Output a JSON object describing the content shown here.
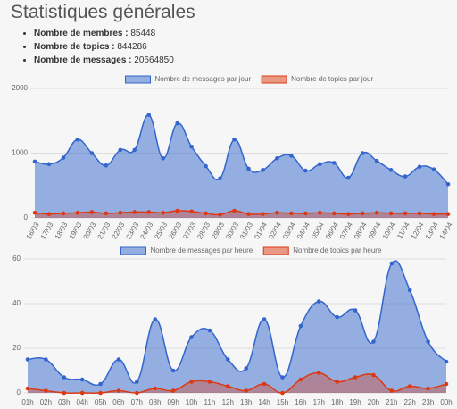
{
  "header": {
    "title": "Statistiques générales"
  },
  "stats": [
    {
      "label": "Nombre de membres :",
      "value": 85448
    },
    {
      "label": "Nombre de topics :",
      "value": 844286
    },
    {
      "label": "Nombre de messages :",
      "value": 20664850
    }
  ],
  "chart_data": [
    {
      "type": "area",
      "legend": "top",
      "grid": true,
      "categories": [
        "16/03",
        "17/03",
        "18/03",
        "19/03",
        "20/03",
        "21/03",
        "22/03",
        "23/03",
        "24/03",
        "25/03",
        "26/03",
        "27/03",
        "28/03",
        "29/03",
        "30/03",
        "31/03",
        "01/04",
        "02/04",
        "03/04",
        "04/04",
        "05/04",
        "06/04",
        "07/04",
        "08/04",
        "09/04",
        "10/04",
        "11/04",
        "12/04",
        "13/04",
        "14/04"
      ],
      "ylim": [
        0,
        2000
      ],
      "yticks": [
        0,
        1000,
        2000
      ],
      "series": [
        {
          "name": "Nombre de messages par jour",
          "color": "#3366cc",
          "values": [
            870,
            830,
            930,
            1210,
            1000,
            810,
            1050,
            1050,
            1590,
            920,
            1460,
            1100,
            800,
            610,
            1210,
            760,
            740,
            920,
            960,
            730,
            830,
            850,
            620,
            1000,
            880,
            740,
            640,
            790,
            750,
            520
          ]
        },
        {
          "name": "Nombre de topics par jour",
          "color": "#dc3912",
          "values": [
            80,
            60,
            70,
            80,
            90,
            70,
            80,
            90,
            90,
            80,
            110,
            100,
            70,
            50,
            110,
            60,
            60,
            80,
            70,
            70,
            80,
            70,
            60,
            70,
            80,
            70,
            70,
            70,
            60,
            60
          ]
        }
      ]
    },
    {
      "type": "area",
      "legend": "top",
      "grid": true,
      "categories": [
        "01h",
        "02h",
        "03h",
        "04h",
        "05h",
        "06h",
        "07h",
        "08h",
        "09h",
        "10h",
        "11h",
        "12h",
        "13h",
        "14h",
        "15h",
        "16h",
        "17h",
        "18h",
        "19h",
        "20h",
        "21h",
        "22h",
        "23h",
        "00h"
      ],
      "ylim": [
        0,
        60
      ],
      "yticks": [
        0,
        20,
        40,
        60
      ],
      "series": [
        {
          "name": "Nombre de messages par heure",
          "color": "#3366cc",
          "values": [
            15,
            15,
            7,
            6,
            4,
            15,
            5,
            33,
            10,
            25,
            28,
            15,
            11,
            33,
            7,
            30,
            41,
            34,
            37,
            23,
            58,
            46,
            23,
            14
          ]
        },
        {
          "name": "Nombre de topics par heure",
          "color": "#dc3912",
          "values": [
            2,
            1,
            0,
            0,
            0,
            1,
            0,
            2,
            1,
            5,
            5,
            3,
            1,
            4,
            0,
            6,
            9,
            5,
            7,
            8,
            1,
            3,
            2,
            4
          ]
        }
      ]
    }
  ]
}
